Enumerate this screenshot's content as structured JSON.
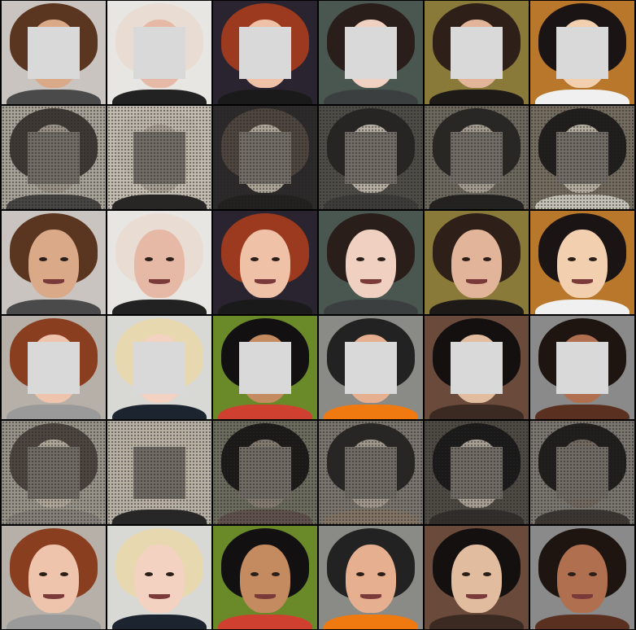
{
  "layout": {
    "columns": 6,
    "rows": 6
  },
  "row_kinds": [
    "masked",
    "noisy",
    "restored",
    "masked",
    "noisy",
    "restored"
  ],
  "subjects": [
    {
      "bg": "#c9c4bf",
      "skin": "#d9a988",
      "hair": "#5a3520",
      "body": "#4a4a4a"
    },
    {
      "bg": "#e8e6e2",
      "skin": "#e6b9a6",
      "hair": "#e9dcd3",
      "body": "#222222"
    },
    {
      "bg": "#2a2430",
      "skin": "#efc2a8",
      "hair": "#9b3a1e",
      "body": "#1a1a1a"
    },
    {
      "bg": "#4a5650",
      "skin": "#f0d0c0",
      "hair": "#2a1e1a",
      "body": "#3c3f40"
    },
    {
      "bg": "#8a7a3a",
      "skin": "#e2b59a",
      "hair": "#2e2018",
      "body": "#1e1a18"
    },
    {
      "bg": "#b8772a",
      "skin": "#f2cfae",
      "hair": "#1a1414",
      "body": "#f0f0f0"
    },
    {
      "bg": "#b7b0a8",
      "skin": "#eec4ac",
      "hair": "#8a3e20",
      "body": "#9a9a9a"
    },
    {
      "bg": "#d8d8d4",
      "skin": "#f4d2c2",
      "hair": "#e8d8b0",
      "body": "#1c2430"
    },
    {
      "bg": "#6a8a2a",
      "skin": "#c48a60",
      "hair": "#121010",
      "body": "#d04030"
    },
    {
      "bg": "#8a8a86",
      "skin": "#e6b090",
      "hair": "#222222",
      "body": "#f07a10"
    },
    {
      "bg": "#6a4a3a",
      "skin": "#e2bc9e",
      "hair": "#141010",
      "body": "#3a2a22"
    },
    {
      "bg": "#8a8a8a",
      "skin": "#b07050",
      "hair": "#1e1410",
      "body": "#5a3020"
    }
  ]
}
